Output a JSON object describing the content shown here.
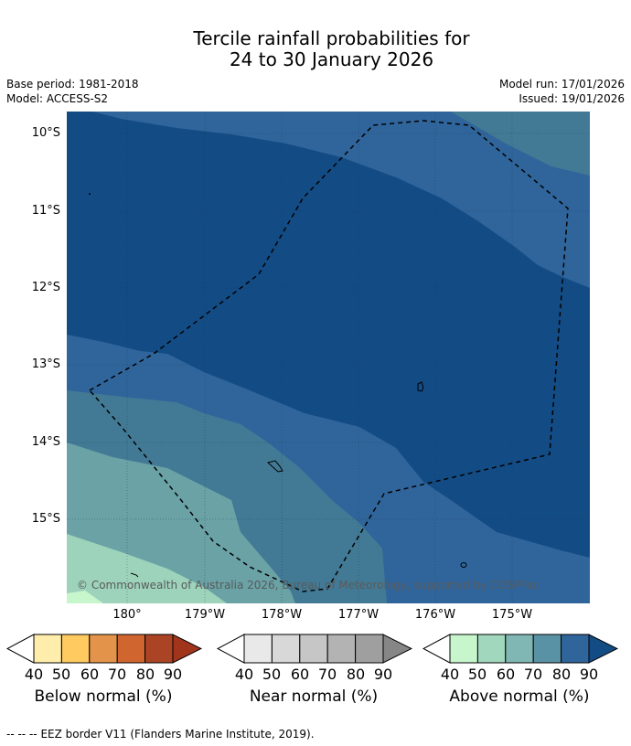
{
  "title": {
    "line1": "Tercile rainfall probabilities for",
    "line2": "24 to 30 January 2026"
  },
  "meta": {
    "base_period": "Base period: 1981-2018",
    "model": "Model: ACCESS-S2",
    "model_run": "Model run: 17/01/2026",
    "issued": "Issued: 19/01/2026"
  },
  "map": {
    "lat_labels": [
      "10°S",
      "11°S",
      "12°S",
      "13°S",
      "14°S",
      "15°S"
    ],
    "lon_labels": [
      "180°",
      "179°W",
      "178°W",
      "177°W",
      "176°W",
      "175°W"
    ],
    "copyright": "© Commonwealth of Australia 2026, Bureau of Meteorology, supported by COSPPac",
    "region_colors": {
      "above_90": "#134c85",
      "above_80": "#30659b",
      "above_70": "#427a95",
      "above_60": "#6aa2a6",
      "above_50": "#9dd3bb",
      "above_40": "#c7f5cc"
    }
  },
  "colorbars": [
    {
      "label": "Below normal (%)",
      "ticks": [
        "40",
        "50",
        "60",
        "70",
        "80",
        "90"
      ],
      "colors": [
        "#ffeeab",
        "#ffca60",
        "#e4944a",
        "#d0652f",
        "#ab4325",
        "#a0351c"
      ]
    },
    {
      "label": "Near normal (%)",
      "ticks": [
        "40",
        "50",
        "60",
        "70",
        "80",
        "90"
      ],
      "colors": [
        "#e9e9e9",
        "#d8d8d8",
        "#c6c6c6",
        "#b3b3b3",
        "#9f9f9f",
        "#868686"
      ]
    },
    {
      "label": "Above normal (%)",
      "ticks": [
        "40",
        "50",
        "60",
        "70",
        "80",
        "90"
      ],
      "colors": [
        "#c7f5cc",
        "#a1d8bd",
        "#80b6b3",
        "#5a92a5",
        "#30659b",
        "#134c85"
      ]
    }
  ],
  "legend": {
    "eez_symbol": "-- -- --",
    "eez": "EEZ border V11 (Flanders Marine Institute, 2019)."
  }
}
